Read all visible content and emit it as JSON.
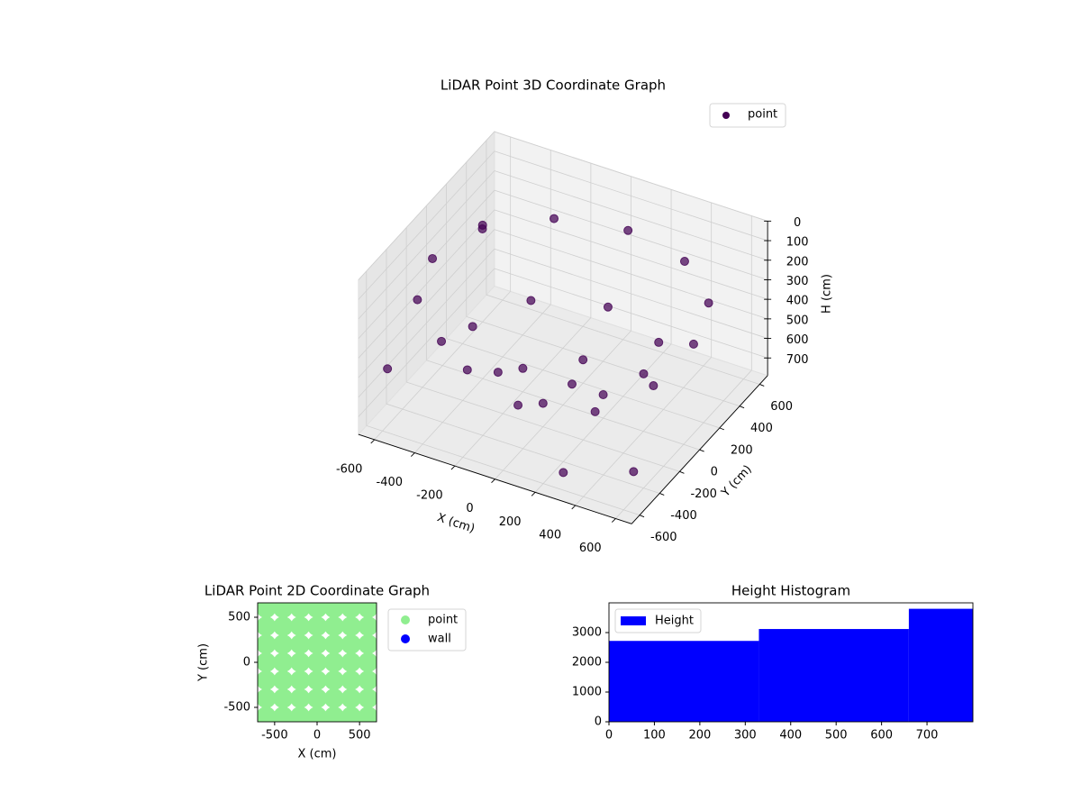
{
  "chart_data": [
    {
      "type": "scatter3d",
      "title": "LiDAR Point 3D Coordinate Graph",
      "xlabel": "X (cm)",
      "ylabel": "Y (cm)",
      "zlabel": "H (cm)",
      "xlim": [
        -680,
        680
      ],
      "ylim": [
        -680,
        680
      ],
      "zlim": [
        0,
        790
      ],
      "z_inverted": true,
      "xticks": [
        -600,
        -400,
        -200,
        0,
        200,
        400,
        600
      ],
      "yticks": [
        -600,
        -400,
        -200,
        0,
        200,
        400,
        600
      ],
      "zticks": [
        0,
        100,
        200,
        300,
        400,
        500,
        600,
        700
      ],
      "grid": true,
      "legend": "upper right",
      "series": [
        {
          "name": "point",
          "color": "#440154",
          "x": [
            650,
            563,
            325,
            0,
            -325,
            -563,
            -650,
            -563,
            -325,
            0,
            325,
            563,
            450,
            318,
            0,
            -318,
            -450,
            -318,
            0,
            318,
            200,
            0,
            -200,
            0,
            -500,
            300,
            -600,
            600
          ],
          "y": [
            0,
            325,
            563,
            650,
            563,
            325,
            0,
            -325,
            -563,
            -650,
            -563,
            -325,
            0,
            318,
            450,
            318,
            0,
            -318,
            -450,
            -318,
            0,
            200,
            0,
            -200,
            200,
            -600,
            -550,
            -500
          ],
          "z": [
            260,
            260,
            260,
            260,
            260,
            260,
            260,
            260,
            260,
            260,
            260,
            260,
            540,
            540,
            540,
            540,
            540,
            540,
            540,
            540,
            670,
            670,
            670,
            670,
            150,
            700,
            500,
            650
          ]
        }
      ]
    },
    {
      "type": "scatter",
      "title": "LiDAR Point 2D Coordinate Graph",
      "xlabel": "X (cm)",
      "ylabel": "Y (cm)",
      "xlim": [
        -700,
        700
      ],
      "ylim": [
        -660,
        660
      ],
      "xticks": [
        -500,
        0,
        500
      ],
      "yticks": [
        -500,
        0,
        500
      ],
      "legend": "outside right",
      "series": [
        {
          "name": "point",
          "color": "#90ee90",
          "x": [
            -600,
            -400,
            -200,
            0,
            200,
            400,
            600,
            -600,
            -400,
            -200,
            0,
            200,
            400,
            600,
            -600,
            -400,
            -200,
            0,
            200,
            400,
            600,
            -600,
            -400,
            -200,
            0,
            200,
            400,
            600,
            -600,
            -400,
            -200,
            0,
            200,
            400,
            600,
            -600,
            -400,
            -200,
            0,
            200,
            400,
            600,
            -600,
            -400,
            -200,
            0,
            200,
            400,
            600
          ],
          "y": [
            -600,
            -600,
            -600,
            -600,
            -600,
            -600,
            -600,
            -400,
            -400,
            -400,
            -400,
            -400,
            -400,
            -400,
            -200,
            -200,
            -200,
            -200,
            -200,
            -200,
            -200,
            0,
            0,
            0,
            0,
            0,
            0,
            0,
            200,
            200,
            200,
            200,
            200,
            200,
            200,
            400,
            400,
            400,
            400,
            400,
            400,
            400,
            600,
            600,
            600,
            600,
            600,
            600,
            600
          ]
        },
        {
          "name": "wall",
          "color": "#0000ff",
          "x": [],
          "y": []
        }
      ]
    },
    {
      "type": "histogram",
      "title": "Height Histogram",
      "bins": [
        0,
        330,
        660,
        801
      ],
      "series": [
        {
          "name": "Height",
          "color": "#0000ff",
          "values": [
            2720,
            3120,
            3800
          ]
        }
      ],
      "xlim": [
        0,
        801
      ],
      "ylim": [
        0,
        4000
      ],
      "xticks": [
        0,
        100,
        200,
        300,
        400,
        500,
        600,
        700
      ],
      "yticks": [
        0,
        1000,
        2000,
        3000
      ],
      "legend": "upper left"
    }
  ]
}
